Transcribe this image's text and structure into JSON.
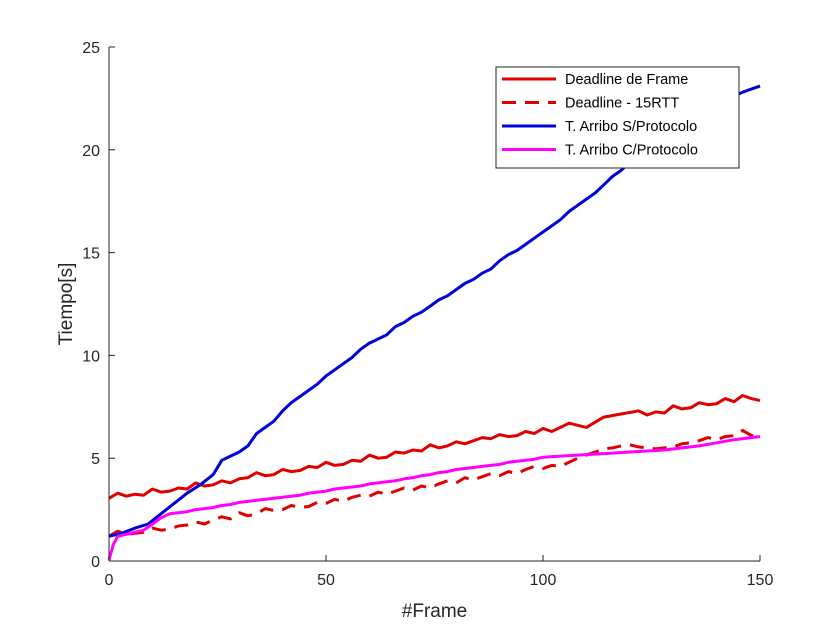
{
  "chart_data": {
    "type": "line",
    "title": "",
    "xlabel": "#Frame",
    "ylabel": "Tiempo[s]",
    "xlim": [
      0,
      150
    ],
    "ylim": [
      0,
      25
    ],
    "xticks": [
      0,
      50,
      100,
      150
    ],
    "yticks": [
      0,
      5,
      10,
      15,
      20,
      25
    ],
    "grid": false,
    "legend_position": "top-right",
    "series": [
      {
        "name": "Deadline de Frame",
        "color": "#e00000",
        "style": "solid",
        "points": [
          [
            0,
            3.05
          ],
          [
            2,
            3.3
          ],
          [
            4,
            3.15
          ],
          [
            6,
            3.25
          ],
          [
            8,
            3.2
          ],
          [
            10,
            3.5
          ],
          [
            12,
            3.35
          ],
          [
            14,
            3.4
          ],
          [
            16,
            3.55
          ],
          [
            18,
            3.5
          ],
          [
            20,
            3.8
          ],
          [
            22,
            3.65
          ],
          [
            24,
            3.7
          ],
          [
            26,
            3.9
          ],
          [
            28,
            3.8
          ],
          [
            30,
            4.0
          ],
          [
            32,
            4.05
          ],
          [
            34,
            4.3
          ],
          [
            36,
            4.15
          ],
          [
            38,
            4.2
          ],
          [
            40,
            4.45
          ],
          [
            42,
            4.35
          ],
          [
            44,
            4.4
          ],
          [
            46,
            4.6
          ],
          [
            48,
            4.55
          ],
          [
            50,
            4.8
          ],
          [
            52,
            4.65
          ],
          [
            54,
            4.7
          ],
          [
            56,
            4.9
          ],
          [
            58,
            4.85
          ],
          [
            60,
            5.15
          ],
          [
            62,
            5.0
          ],
          [
            64,
            5.05
          ],
          [
            66,
            5.3
          ],
          [
            68,
            5.25
          ],
          [
            70,
            5.4
          ],
          [
            72,
            5.35
          ],
          [
            74,
            5.65
          ],
          [
            76,
            5.5
          ],
          [
            78,
            5.6
          ],
          [
            80,
            5.8
          ],
          [
            82,
            5.7
          ],
          [
            84,
            5.85
          ],
          [
            86,
            6.0
          ],
          [
            88,
            5.95
          ],
          [
            90,
            6.15
          ],
          [
            92,
            6.05
          ],
          [
            94,
            6.1
          ],
          [
            96,
            6.3
          ],
          [
            98,
            6.2
          ],
          [
            100,
            6.45
          ],
          [
            102,
            6.3
          ],
          [
            104,
            6.5
          ],
          [
            106,
            6.7
          ],
          [
            108,
            6.6
          ],
          [
            110,
            6.5
          ],
          [
            114,
            7.0
          ],
          [
            118,
            7.15
          ],
          [
            122,
            7.3
          ],
          [
            124,
            7.1
          ],
          [
            126,
            7.25
          ],
          [
            128,
            7.2
          ],
          [
            130,
            7.55
          ],
          [
            132,
            7.4
          ],
          [
            134,
            7.45
          ],
          [
            136,
            7.7
          ],
          [
            138,
            7.6
          ],
          [
            140,
            7.65
          ],
          [
            142,
            7.9
          ],
          [
            144,
            7.75
          ],
          [
            146,
            8.05
          ],
          [
            148,
            7.9
          ],
          [
            150,
            7.8
          ]
        ]
      },
      {
        "name": "Deadline - 15RTT",
        "color": "#e00000",
        "style": "dashed",
        "points": [
          [
            0,
            1.2
          ],
          [
            2,
            1.45
          ],
          [
            4,
            1.3
          ],
          [
            6,
            1.35
          ],
          [
            8,
            1.4
          ],
          [
            10,
            1.6
          ],
          [
            12,
            1.5
          ],
          [
            14,
            1.55
          ],
          [
            16,
            1.7
          ],
          [
            18,
            1.75
          ],
          [
            20,
            1.9
          ],
          [
            22,
            1.8
          ],
          [
            24,
            2.0
          ],
          [
            26,
            2.15
          ],
          [
            28,
            2.05
          ],
          [
            30,
            2.35
          ],
          [
            32,
            2.2
          ],
          [
            34,
            2.3
          ],
          [
            36,
            2.55
          ],
          [
            38,
            2.45
          ],
          [
            40,
            2.5
          ],
          [
            42,
            2.7
          ],
          [
            44,
            2.6
          ],
          [
            46,
            2.65
          ],
          [
            48,
            2.85
          ],
          [
            50,
            2.8
          ],
          [
            52,
            3.0
          ],
          [
            54,
            2.9
          ],
          [
            56,
            3.1
          ],
          [
            58,
            3.2
          ],
          [
            60,
            3.15
          ],
          [
            62,
            3.35
          ],
          [
            64,
            3.25
          ],
          [
            66,
            3.4
          ],
          [
            68,
            3.55
          ],
          [
            70,
            3.45
          ],
          [
            72,
            3.65
          ],
          [
            74,
            3.55
          ],
          [
            76,
            3.75
          ],
          [
            78,
            3.9
          ],
          [
            80,
            3.8
          ],
          [
            82,
            4.05
          ],
          [
            84,
            3.95
          ],
          [
            86,
            4.1
          ],
          [
            88,
            4.25
          ],
          [
            90,
            4.15
          ],
          [
            92,
            4.35
          ],
          [
            94,
            4.25
          ],
          [
            96,
            4.45
          ],
          [
            98,
            4.6
          ],
          [
            100,
            4.5
          ],
          [
            102,
            4.65
          ],
          [
            104,
            4.6
          ],
          [
            106,
            4.8
          ],
          [
            108,
            5.0
          ],
          [
            110,
            5.15
          ],
          [
            112,
            5.3
          ],
          [
            114,
            5.45
          ],
          [
            116,
            5.5
          ],
          [
            118,
            5.6
          ],
          [
            120,
            5.65
          ],
          [
            122,
            5.55
          ],
          [
            124,
            5.5
          ],
          [
            126,
            5.45
          ],
          [
            128,
            5.5
          ],
          [
            130,
            5.55
          ],
          [
            132,
            5.7
          ],
          [
            134,
            5.75
          ],
          [
            136,
            5.85
          ],
          [
            138,
            6.0
          ],
          [
            140,
            5.9
          ],
          [
            142,
            6.05
          ],
          [
            144,
            6.1
          ],
          [
            146,
            6.35
          ],
          [
            148,
            6.1
          ],
          [
            150,
            6.05
          ]
        ]
      },
      {
        "name": "T. Arribo S/Protocolo",
        "color": "#0000dd",
        "style": "solid",
        "points": [
          [
            0,
            1.2
          ],
          [
            3,
            1.35
          ],
          [
            6,
            1.6
          ],
          [
            9,
            1.8
          ],
          [
            12,
            2.3
          ],
          [
            15,
            2.8
          ],
          [
            18,
            3.3
          ],
          [
            21,
            3.7
          ],
          [
            24,
            4.2
          ],
          [
            26,
            4.9
          ],
          [
            28,
            5.1
          ],
          [
            30,
            5.3
          ],
          [
            32,
            5.6
          ],
          [
            34,
            6.2
          ],
          [
            36,
            6.5
          ],
          [
            38,
            6.8
          ],
          [
            40,
            7.3
          ],
          [
            42,
            7.7
          ],
          [
            44,
            8.0
          ],
          [
            46,
            8.3
          ],
          [
            48,
            8.6
          ],
          [
            50,
            9.0
          ],
          [
            52,
            9.3
          ],
          [
            54,
            9.6
          ],
          [
            56,
            9.9
          ],
          [
            58,
            10.3
          ],
          [
            60,
            10.6
          ],
          [
            62,
            10.8
          ],
          [
            64,
            11.0
          ],
          [
            66,
            11.4
          ],
          [
            68,
            11.6
          ],
          [
            70,
            11.9
          ],
          [
            72,
            12.1
          ],
          [
            74,
            12.4
          ],
          [
            76,
            12.7
          ],
          [
            78,
            12.9
          ],
          [
            80,
            13.2
          ],
          [
            82,
            13.5
          ],
          [
            84,
            13.7
          ],
          [
            86,
            14.0
          ],
          [
            88,
            14.2
          ],
          [
            90,
            14.6
          ],
          [
            92,
            14.9
          ],
          [
            94,
            15.1
          ],
          [
            96,
            15.4
          ],
          [
            98,
            15.7
          ],
          [
            100,
            16.0
          ],
          [
            102,
            16.3
          ],
          [
            104,
            16.6
          ],
          [
            106,
            17.0
          ],
          [
            108,
            17.3
          ],
          [
            110,
            17.6
          ],
          [
            112,
            17.9
          ],
          [
            114,
            18.3
          ],
          [
            116,
            18.7
          ],
          [
            118,
            19.0
          ],
          [
            120,
            19.4
          ],
          [
            122,
            19.8
          ],
          [
            124,
            20.1
          ],
          [
            126,
            20.4
          ],
          [
            128,
            20.7
          ],
          [
            130,
            21.0
          ],
          [
            132,
            21.3
          ],
          [
            134,
            21.6
          ],
          [
            136,
            21.8
          ],
          [
            138,
            22.0
          ],
          [
            140,
            22.2
          ],
          [
            142,
            22.4
          ],
          [
            144,
            22.6
          ],
          [
            146,
            22.8
          ],
          [
            148,
            22.95
          ],
          [
            150,
            23.1
          ]
        ]
      },
      {
        "name": "T. Arribo C/Protocolo",
        "color": "#ff00ff",
        "style": "solid",
        "points": [
          [
            0,
            0.05
          ],
          [
            1,
            0.8
          ],
          [
            2,
            1.2
          ],
          [
            4,
            1.3
          ],
          [
            6,
            1.4
          ],
          [
            8,
            1.5
          ],
          [
            10,
            1.8
          ],
          [
            12,
            2.1
          ],
          [
            14,
            2.3
          ],
          [
            16,
            2.35
          ],
          [
            18,
            2.4
          ],
          [
            20,
            2.5
          ],
          [
            22,
            2.55
          ],
          [
            24,
            2.6
          ],
          [
            26,
            2.7
          ],
          [
            28,
            2.75
          ],
          [
            30,
            2.85
          ],
          [
            32,
            2.9
          ],
          [
            34,
            2.95
          ],
          [
            36,
            3.0
          ],
          [
            38,
            3.05
          ],
          [
            40,
            3.1
          ],
          [
            42,
            3.15
          ],
          [
            44,
            3.2
          ],
          [
            46,
            3.3
          ],
          [
            48,
            3.35
          ],
          [
            50,
            3.4
          ],
          [
            52,
            3.5
          ],
          [
            54,
            3.55
          ],
          [
            56,
            3.6
          ],
          [
            58,
            3.65
          ],
          [
            60,
            3.75
          ],
          [
            62,
            3.8
          ],
          [
            64,
            3.85
          ],
          [
            66,
            3.9
          ],
          [
            68,
            4.0
          ],
          [
            70,
            4.05
          ],
          [
            72,
            4.15
          ],
          [
            74,
            4.2
          ],
          [
            76,
            4.3
          ],
          [
            78,
            4.35
          ],
          [
            80,
            4.45
          ],
          [
            82,
            4.5
          ],
          [
            84,
            4.55
          ],
          [
            86,
            4.6
          ],
          [
            88,
            4.65
          ],
          [
            90,
            4.7
          ],
          [
            92,
            4.8
          ],
          [
            94,
            4.85
          ],
          [
            96,
            4.9
          ],
          [
            98,
            4.95
          ],
          [
            100,
            5.05
          ],
          [
            104,
            5.1
          ],
          [
            108,
            5.15
          ],
          [
            112,
            5.2
          ],
          [
            116,
            5.25
          ],
          [
            120,
            5.3
          ],
          [
            124,
            5.35
          ],
          [
            128,
            5.4
          ],
          [
            132,
            5.5
          ],
          [
            136,
            5.6
          ],
          [
            140,
            5.75
          ],
          [
            144,
            5.9
          ],
          [
            148,
            6.0
          ],
          [
            150,
            6.05
          ]
        ]
      }
    ]
  }
}
